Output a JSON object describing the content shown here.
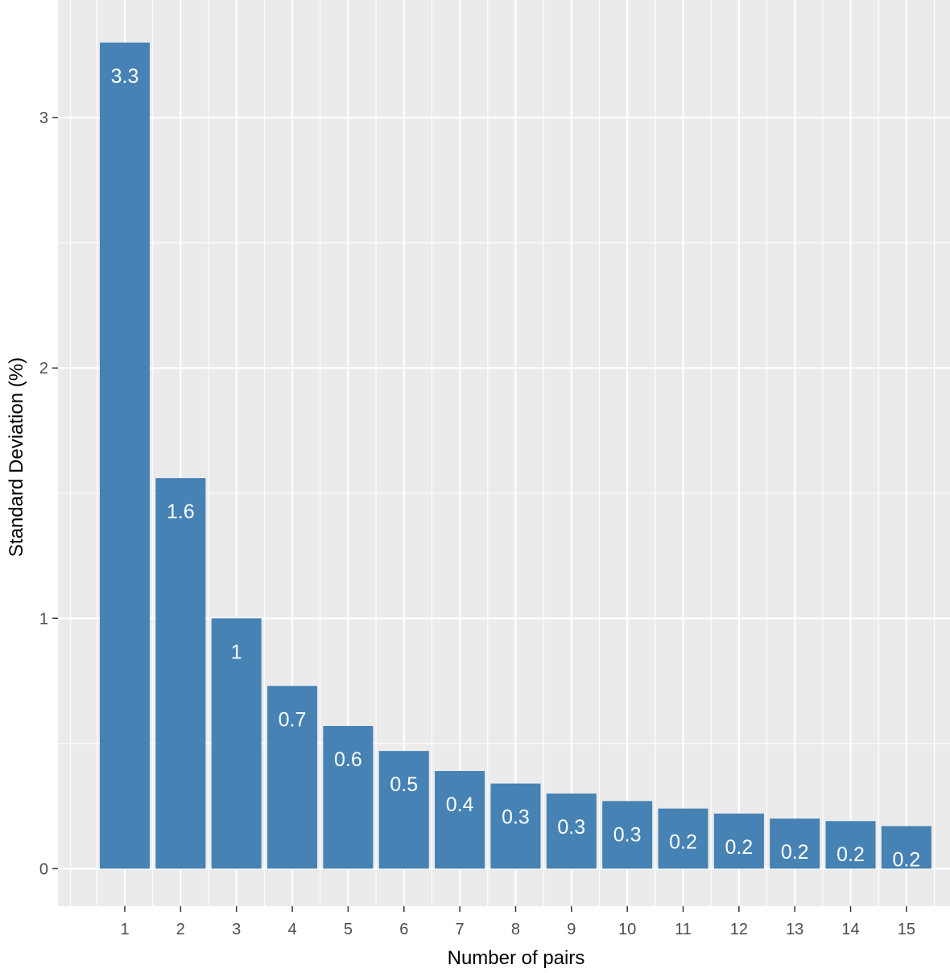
{
  "chart_data": {
    "type": "bar",
    "xlabel": "Number of pairs",
    "ylabel": "Standard Deviation (%)",
    "categories": [
      "1",
      "2",
      "3",
      "4",
      "5",
      "6",
      "7",
      "8",
      "9",
      "10",
      "11",
      "12",
      "13",
      "14",
      "15"
    ],
    "values": [
      3.3,
      1.56,
      1.0,
      0.73,
      0.57,
      0.47,
      0.39,
      0.34,
      0.3,
      0.27,
      0.24,
      0.22,
      0.2,
      0.19,
      0.17
    ],
    "labels": [
      "3.3",
      "1.6",
      "1",
      "0.7",
      "0.6",
      "0.5",
      "0.4",
      "0.3",
      "0.3",
      "0.3",
      "0.2",
      "0.2",
      "0.2",
      "0.2",
      "0.2"
    ],
    "yticks": [
      0,
      1,
      2,
      3
    ],
    "ylim": [
      -0.15,
      3.47
    ],
    "grid": true,
    "colors": {
      "bar": "#4682b4",
      "panel": "#ebebeb",
      "gridline": "#ffffff",
      "label": "#ffffff",
      "axis_text": "#4d4d4d",
      "axis_title": "#000000"
    }
  }
}
